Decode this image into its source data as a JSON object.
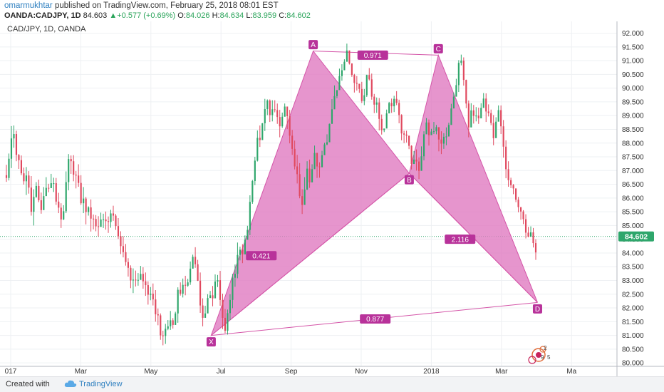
{
  "header": {
    "author": "omarmukhtar",
    "published": "published on TradingView.com, February 25, 2018 08:01 EST",
    "symbol": "OANDA:CADJPY, 1D",
    "last": "84.603",
    "change": "+0.577 (+0.69%)",
    "o_label": "O:",
    "o": "84.026",
    "h_label": "H:",
    "h": "84.634",
    "l_label": "L:",
    "l": "83.959",
    "c_label": "C:",
    "c": "84.602"
  },
  "footer": {
    "created": "Created with",
    "brand": "TradingView"
  },
  "chart_data": {
    "type": "candlestick",
    "title": "CAD/JPY, 1D, OANDA",
    "y_ticks": [
      "92.000",
      "91.500",
      "91.000",
      "90.500",
      "90.000",
      "89.500",
      "89.000",
      "88.500",
      "88.000",
      "87.500",
      "87.000",
      "86.500",
      "86.000",
      "85.500",
      "85.000",
      "84.500",
      "84.000",
      "83.500",
      "83.000",
      "82.500",
      "82.000",
      "81.500",
      "81.000",
      "80.500",
      "80.000"
    ],
    "ylim": [
      79.9,
      92.3
    ],
    "x_ticks": [
      {
        "label": "017",
        "m": 0
      },
      {
        "label": "Mar",
        "m": 2
      },
      {
        "label": "May",
        "m": 4
      },
      {
        "label": "Jul",
        "m": 6
      },
      {
        "label": "Sep",
        "m": 8
      },
      {
        "label": "Nov",
        "m": 10
      },
      {
        "label": "2018",
        "m": 12
      },
      {
        "label": "Mar",
        "m": 14
      },
      {
        "label": "Ma",
        "m": 16
      }
    ],
    "current_price": "84.602",
    "current_value": 84.602,
    "pattern": {
      "points": [
        {
          "label": "X",
          "m": 5.72,
          "price": 81.0
        },
        {
          "label": "A",
          "m": 8.63,
          "price": 91.35
        },
        {
          "label": "B",
          "m": 11.37,
          "price": 86.9
        },
        {
          "label": "C",
          "m": 12.2,
          "price": 91.2
        },
        {
          "label": "D",
          "m": 15.03,
          "price": 82.2
        }
      ],
      "ratios": [
        {
          "label": "0.971",
          "m": 10.33,
          "price": 91.2
        },
        {
          "label": "0.421",
          "m": 7.15,
          "price": 83.9
        },
        {
          "label": "2.116",
          "m": 12.82,
          "price": 84.5
        },
        {
          "label": "0.877",
          "m": 10.4,
          "price": 81.6
        }
      ]
    },
    "colors": {
      "up": "#2ea66b",
      "down": "#e0485e",
      "pattern_fill": "#e07bc0",
      "pattern_line": "#d455a8",
      "label_bg": "#b8329a",
      "price_tag": "#2ea66b"
    },
    "candles": [
      [
        86.83,
        86.73,
        87.21,
        86.59
      ],
      [
        86.73,
        87.43,
        87.62,
        86.64
      ],
      [
        87.43,
        88.17,
        88.62,
        87.09
      ],
      [
        88.17,
        88.33,
        88.64,
        87.83
      ],
      [
        88.33,
        87.57,
        88.45,
        87.34
      ],
      [
        87.57,
        87.38,
        87.6,
        87.06
      ],
      [
        87.38,
        86.9,
        87.55,
        86.83
      ],
      [
        86.9,
        86.61,
        87.11,
        86.49
      ],
      [
        86.61,
        86.82,
        87.13,
        86.11
      ],
      [
        86.82,
        86.38,
        86.98,
        86.16
      ],
      [
        86.38,
        85.5,
        86.8,
        85.36
      ],
      [
        85.5,
        86.04,
        86.32,
        85.0
      ],
      [
        86.04,
        86.44,
        86.58,
        86.01
      ],
      [
        86.44,
        85.92,
        86.67,
        85.85
      ],
      [
        85.92,
        85.56,
        86.2,
        85.43
      ],
      [
        85.56,
        86.07,
        86.4,
        85.67
      ],
      [
        86.07,
        86.37,
        86.76,
        86.13
      ],
      [
        86.37,
        86.36,
        86.52,
        86.21
      ],
      [
        86.36,
        86.54,
        86.88,
        86.38
      ],
      [
        86.54,
        86.54,
        86.74,
        86.22
      ],
      [
        86.54,
        85.87,
        86.73,
        85.75
      ],
      [
        85.87,
        85.65,
        86.19,
        85.45
      ],
      [
        85.65,
        85.22,
        85.81,
        84.91
      ],
      [
        85.22,
        85.52,
        85.74,
        85.2
      ],
      [
        85.52,
        86.58,
        86.97,
        85.45
      ],
      [
        86.58,
        87.42,
        87.6,
        86.28
      ],
      [
        87.42,
        87.34,
        87.55,
        86.88
      ],
      [
        87.34,
        86.85,
        87.56,
        86.61
      ],
      [
        86.85,
        86.82,
        86.98,
        86.35
      ],
      [
        86.82,
        86.55,
        87.23,
        86.41
      ],
      [
        86.55,
        85.81,
        86.83,
        85.75
      ],
      [
        85.81,
        85.98,
        86.4,
        85.45
      ],
      [
        85.98,
        85.49,
        86.04,
        85.04
      ],
      [
        85.49,
        85.66,
        85.7,
        85.36
      ],
      [
        85.66,
        85.25,
        85.95,
        84.78
      ],
      [
        85.25,
        85.24,
        85.4,
        84.86
      ],
      [
        85.24,
        84.97,
        85.38,
        84.79
      ],
      [
        84.97,
        84.95,
        85.34,
        84.6
      ],
      [
        84.95,
        85.22,
        85.47,
        85.06
      ],
      [
        85.22,
        85.22,
        85.43,
        84.91
      ],
      [
        85.22,
        85.16,
        85.51,
        84.85
      ],
      [
        85.16,
        85.13,
        85.33,
        84.73
      ],
      [
        85.13,
        85.44,
        85.57,
        84.92
      ],
      [
        85.44,
        85.36,
        85.72,
        85.17
      ],
      [
        85.36,
        84.98,
        85.42,
        84.84
      ],
      [
        84.98,
        84.61,
        85.27,
        84.51
      ],
      [
        84.61,
        84.25,
        84.79,
        83.96
      ],
      [
        84.25,
        84.03,
        84.61,
        83.84
      ],
      [
        84.03,
        83.67,
        84.33,
        83.54
      ],
      [
        83.67,
        83.46,
        83.81,
        83.14
      ],
      [
        83.46,
        83.0,
        83.55,
        82.72
      ],
      [
        83.0,
        83.03,
        83.44,
        82.54
      ],
      [
        83.03,
        83.02,
        83.36,
        82.78
      ],
      [
        83.02,
        83.02,
        83.27,
        82.81
      ],
      [
        83.02,
        83.24,
        83.53,
        83.09
      ],
      [
        83.24,
        82.97,
        83.48,
        82.7
      ],
      [
        82.97,
        82.83,
        83.29,
        82.44
      ],
      [
        82.83,
        82.48,
        82.97,
        82.12
      ],
      [
        82.48,
        82.52,
        82.76,
        82.28
      ],
      [
        82.52,
        82.31,
        82.89,
        82.09
      ],
      [
        82.31,
        81.77,
        82.65,
        81.5
      ],
      [
        81.77,
        81.73,
        81.98,
        81.37
      ],
      [
        81.73,
        81.0,
        81.8,
        80.84
      ],
      [
        81.0,
        80.98,
        81.17,
        80.64
      ],
      [
        80.98,
        81.24,
        81.42,
        80.69
      ],
      [
        81.24,
        81.33,
        81.56,
        81.19
      ],
      [
        81.33,
        81.55,
        81.89,
        81.2
      ],
      [
        81.55,
        81.38,
        81.63,
        81.25
      ],
      [
        81.38,
        81.8,
        81.86,
        81.58
      ],
      [
        81.8,
        82.66,
        82.75,
        81.46
      ],
      [
        82.66,
        82.52,
        82.93,
        82.45
      ],
      [
        82.52,
        82.84,
        83.07,
        82.38
      ],
      [
        82.84,
        82.81,
        83.17,
        82.46
      ],
      [
        82.81,
        82.93,
        83.06,
        82.77
      ],
      [
        82.93,
        83.43,
        83.69,
        82.84
      ],
      [
        83.43,
        83.86,
        83.94,
        83.51
      ],
      [
        83.86,
        83.59,
        84.21,
        83.46
      ],
      [
        83.59,
        82.99,
        83.75,
        82.98
      ],
      [
        82.99,
        82.09,
        83.29,
        81.82
      ],
      [
        82.09,
        81.64,
        82.35,
        81.33
      ],
      [
        81.64,
        81.8,
        82.08,
        81.68
      ],
      [
        81.8,
        82.36,
        82.5,
        81.92
      ],
      [
        82.36,
        82.46,
        82.62,
        82.36
      ],
      [
        82.46,
        82.35,
        82.8,
        82.06
      ],
      [
        82.35,
        82.96,
        83.22,
        82.59
      ],
      [
        82.96,
        83.01,
        83.2,
        82.76
      ],
      [
        83.01,
        82.29,
        83.35,
        82.08
      ],
      [
        82.29,
        81.64,
        82.52,
        81.23
      ],
      [
        81.64,
        81.17,
        81.96,
        81.08
      ],
      [
        81.17,
        81.81,
        81.94,
        81.03
      ],
      [
        81.81,
        82.29,
        82.5,
        81.56
      ],
      [
        82.29,
        83.1,
        83.24,
        81.99
      ],
      [
        83.1,
        83.24,
        83.58,
        82.77
      ],
      [
        83.24,
        83.93,
        84.38,
        83.08
      ],
      [
        83.93,
        84.12,
        84.23,
        83.73
      ],
      [
        84.12,
        83.95,
        84.32,
        83.63
      ],
      [
        83.95,
        84.48,
        84.64,
        84.25
      ],
      [
        84.48,
        84.84,
        84.99,
        84.65
      ],
      [
        84.84,
        85.86,
        86.1,
        84.65
      ],
      [
        85.86,
        86.62,
        86.66,
        85.79
      ],
      [
        86.62,
        87.36,
        87.5,
        86.47
      ],
      [
        87.36,
        88.19,
        88.46,
        87.33
      ],
      [
        88.19,
        88.11,
        88.64,
        87.86
      ],
      [
        88.11,
        88.72,
        88.73,
        88.4
      ],
      [
        88.72,
        89.24,
        89.61,
        88.44
      ],
      [
        89.24,
        89.55,
        89.59,
        89.02
      ],
      [
        89.55,
        89.02,
        89.59,
        88.77
      ],
      [
        89.02,
        89.23,
        89.56,
        88.79
      ],
      [
        89.23,
        89.2,
        89.56,
        89.12
      ],
      [
        89.2,
        88.95,
        89.44,
        88.7
      ],
      [
        88.95,
        88.61,
        89.21,
        88.21
      ],
      [
        88.61,
        88.96,
        89.11,
        88.55
      ],
      [
        88.96,
        89.33,
        89.44,
        89.27
      ],
      [
        89.33,
        88.98,
        89.32,
        88.51
      ],
      [
        88.98,
        88.27,
        89.21,
        87.99
      ],
      [
        88.27,
        87.79,
        88.48,
        87.57
      ],
      [
        87.79,
        87.15,
        88.09,
        87.04
      ],
      [
        87.15,
        86.87,
        87.57,
        86.53
      ],
      [
        86.87,
        86.07,
        87.27,
        85.99
      ],
      [
        86.07,
        85.75,
        86.32,
        85.42
      ],
      [
        85.75,
        86.31,
        86.76,
        85.89
      ],
      [
        86.31,
        87.07,
        87.34,
        86.29
      ],
      [
        87.07,
        86.57,
        87.4,
        86.37
      ],
      [
        86.57,
        87.05,
        87.23,
        86.75
      ],
      [
        87.05,
        87.64,
        87.91,
        87.09
      ],
      [
        87.64,
        87.15,
        87.65,
        86.73
      ],
      [
        87.15,
        87.12,
        87.3,
        86.74
      ],
      [
        87.12,
        87.56,
        87.72,
        87.13
      ],
      [
        87.56,
        87.95,
        88.01,
        87.64
      ],
      [
        87.95,
        88.03,
        88.32,
        87.92
      ],
      [
        88.03,
        88.7,
        88.71,
        88.26
      ],
      [
        88.7,
        89.23,
        89.6,
        88.79
      ],
      [
        89.23,
        89.71,
        90.1,
        89.42
      ],
      [
        89.71,
        89.93,
        89.9,
        89.63
      ],
      [
        89.93,
        90.44,
        90.71,
        90.05
      ],
      [
        90.44,
        90.65,
        90.87,
        90.27
      ],
      [
        90.65,
        90.96,
        91.05,
        90.95
      ],
      [
        90.96,
        91.37,
        91.62,
        91.02
      ],
      [
        91.37,
        90.9,
        91.37,
        90.86
      ],
      [
        90.9,
        90.48,
        90.9,
        90.41
      ],
      [
        90.48,
        90.19,
        90.52,
        89.84
      ],
      [
        90.19,
        90.16,
        90.44,
        89.91
      ],
      [
        90.16,
        89.97,
        90.08,
        89.83
      ],
      [
        89.97,
        89.53,
        90.23,
        89.46
      ],
      [
        89.53,
        89.74,
        89.97,
        89.38
      ],
      [
        89.74,
        90.48,
        90.49,
        89.68
      ],
      [
        90.48,
        90.32,
        90.73,
        90.28
      ],
      [
        90.32,
        89.69,
        90.53,
        89.58
      ],
      [
        89.69,
        89.4,
        89.79,
        89.09
      ],
      [
        89.4,
        89.48,
        89.66,
        89.1
      ],
      [
        89.48,
        88.88,
        89.64,
        88.46
      ],
      [
        88.88,
        88.47,
        89.04,
        88.31
      ],
      [
        88.47,
        88.53,
        88.52,
        88.4
      ],
      [
        88.53,
        89.08,
        89.22,
        88.66
      ],
      [
        89.08,
        89.46,
        89.5,
        89.33
      ],
      [
        89.46,
        89.34,
        89.62,
        89.1
      ],
      [
        89.34,
        89.61,
        89.72,
        89.13
      ],
      [
        89.61,
        89.46,
        89.89,
        89.38
      ],
      [
        89.46,
        89.02,
        89.58,
        88.72
      ],
      [
        89.02,
        88.35,
        89.05,
        88.1
      ],
      [
        88.35,
        88.31,
        88.45,
        88.0
      ],
      [
        88.31,
        88.27,
        88.45,
        88.02
      ],
      [
        88.27,
        87.9,
        88.25,
        87.78
      ],
      [
        87.9,
        87.24,
        87.92,
        87.04
      ],
      [
        87.24,
        87.4,
        87.71,
        87.33
      ],
      [
        87.4,
        87.33,
        87.77,
        87.0
      ],
      [
        87.33,
        86.99,
        87.48,
        86.69
      ],
      [
        86.99,
        87.52,
        87.88,
        87.17
      ],
      [
        87.52,
        88.32,
        88.43,
        87.37
      ],
      [
        88.32,
        88.75,
        88.91,
        88.62
      ],
      [
        88.75,
        88.29,
        88.86,
        87.91
      ],
      [
        88.29,
        88.42,
        88.52,
        88.31
      ],
      [
        88.42,
        88.43,
        88.77,
        88.33
      ],
      [
        88.43,
        88.58,
        88.66,
        88.32
      ],
      [
        88.58,
        88.13,
        88.55,
        87.7
      ],
      [
        88.13,
        87.98,
        88.43,
        87.6
      ],
      [
        87.98,
        88.23,
        88.36,
        87.79
      ],
      [
        88.23,
        88.24,
        88.57,
        87.92
      ],
      [
        88.24,
        88.66,
        88.74,
        88.43
      ],
      [
        88.66,
        89.26,
        89.43,
        88.84
      ],
      [
        89.26,
        89.69,
        89.84,
        89.29
      ],
      [
        89.69,
        90.11,
        90.34,
        89.84
      ],
      [
        90.11,
        90.92,
        91.02,
        89.86
      ],
      [
        90.92,
        91.0,
        91.22,
        90.83
      ],
      [
        91.0,
        90.3,
        91.12,
        90.09
      ],
      [
        90.3,
        89.44,
        90.31,
        89.27
      ],
      [
        89.44,
        88.57,
        89.55,
        88.21
      ],
      [
        88.57,
        89.19,
        89.45,
        88.81
      ],
      [
        89.19,
        88.99,
        89.39,
        88.71
      ],
      [
        88.99,
        89.0,
        89.31,
        88.79
      ],
      [
        89.0,
        88.9,
        89.29,
        88.7
      ],
      [
        88.9,
        89.28,
        89.45,
        89.12
      ],
      [
        89.28,
        89.62,
        89.82,
        89.51
      ],
      [
        89.62,
        89.15,
        89.81,
        88.77
      ],
      [
        89.15,
        89.09,
        89.41,
        88.97
      ],
      [
        89.09,
        88.73,
        89.22,
        88.65
      ],
      [
        88.73,
        88.18,
        89.02,
        87.92
      ],
      [
        88.18,
        88.78,
        88.94,
        88.44
      ],
      [
        88.78,
        89.2,
        89.37,
        89.09
      ],
      [
        89.2,
        88.61,
        89.37,
        88.33
      ],
      [
        88.61,
        87.87,
        88.84,
        87.47
      ],
      [
        87.87,
        87.05,
        88.1,
        86.72
      ],
      [
        87.05,
        86.65,
        87.34,
        86.41
      ],
      [
        86.65,
        86.47,
        86.74,
        86.36
      ],
      [
        86.47,
        86.35,
        86.51,
        86.14
      ],
      [
        86.35,
        85.94,
        86.33,
        85.85
      ],
      [
        85.94,
        85.67,
        86.04,
        85.48
      ],
      [
        85.67,
        85.51,
        85.58,
        85.21
      ],
      [
        85.51,
        85.23,
        85.56,
        85.05
      ],
      [
        85.23,
        84.74,
        85.41,
        84.53
      ],
      [
        84.74,
        84.59,
        84.95,
        84.57
      ],
      [
        84.59,
        84.75,
        84.97,
        84.69
      ],
      [
        84.75,
        84.36,
        84.91,
        84.2
      ],
      [
        84.36,
        84.02,
        84.5,
        83.75
      ]
    ]
  }
}
